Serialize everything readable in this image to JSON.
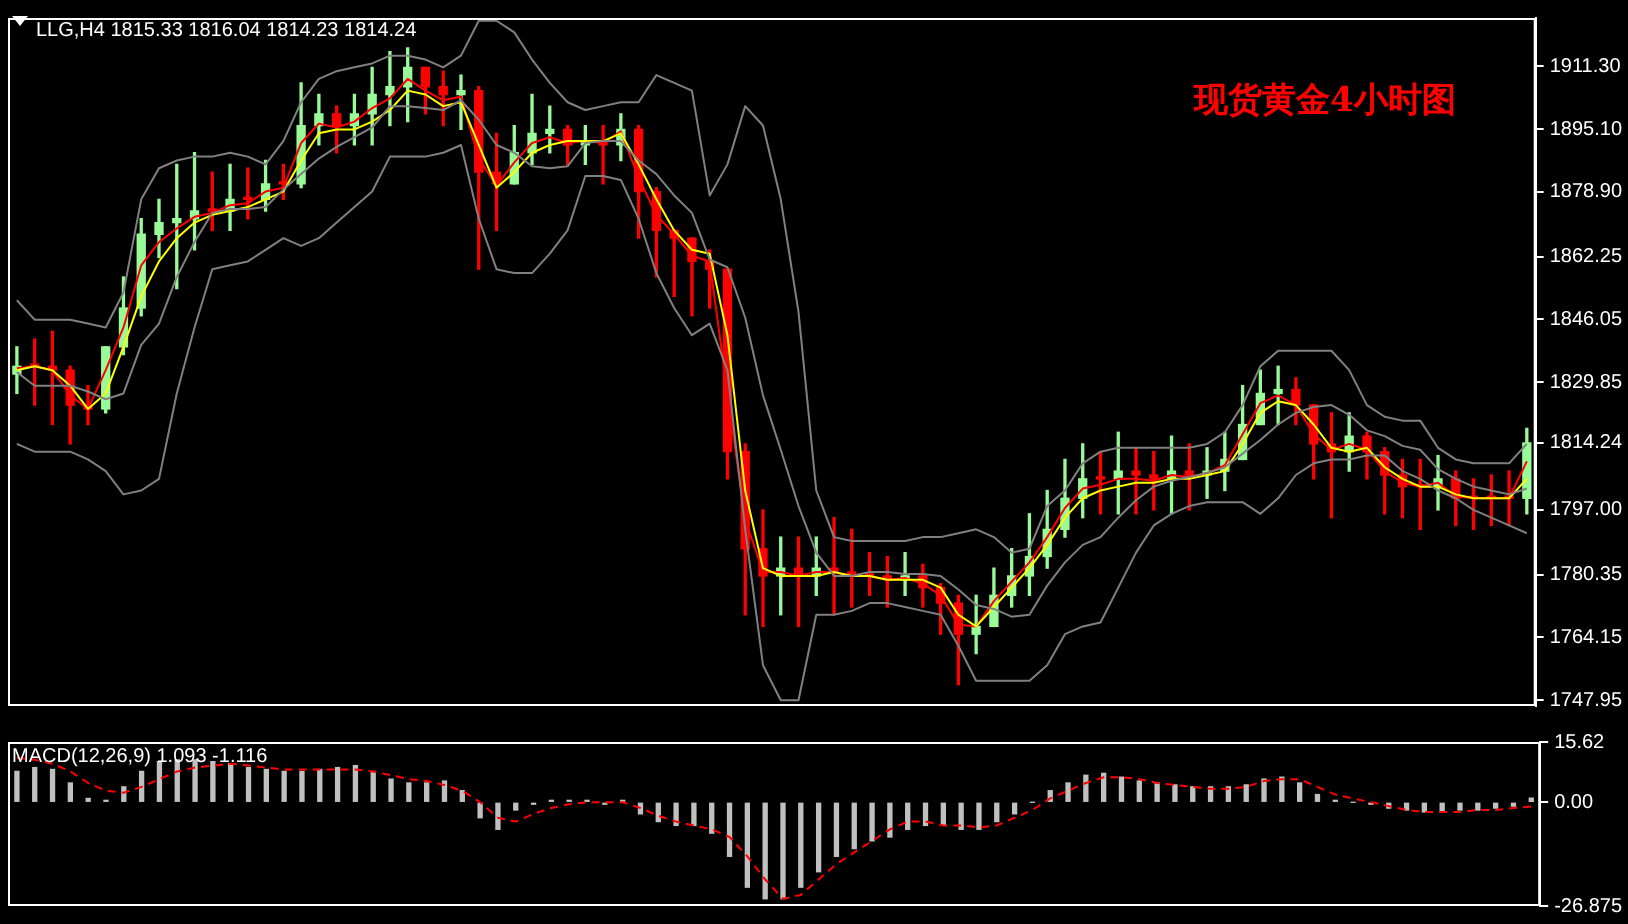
{
  "chart_data": [
    {
      "type": "candlestick",
      "title": "现货黄金4小时图",
      "subtitle": "LLG,H4 1815.33 1816.04 1814.23 1814.24",
      "categories": [
        null,
        null,
        null,
        null,
        null,
        null,
        null,
        null,
        null,
        null,
        null,
        null,
        null,
        null,
        null,
        null,
        null,
        null,
        null,
        null,
        null,
        null,
        null,
        null,
        null,
        null,
        null,
        null,
        null,
        null,
        null,
        null,
        null,
        null,
        null,
        null,
        null,
        null,
        null,
        null,
        null,
        null,
        null,
        null,
        null,
        null,
        null,
        null,
        null,
        null,
        null,
        null,
        null,
        null,
        null,
        null,
        null,
        null,
        null,
        null,
        null,
        null,
        null,
        null,
        null,
        null,
        null,
        null,
        null,
        null,
        null,
        null,
        null,
        null,
        null,
        null,
        null,
        null,
        null,
        null,
        null,
        null,
        null,
        null,
        null,
        null
      ],
      "ohlc": [
        [
          1832,
          1839,
          1827,
          1834
        ],
        [
          1834,
          1841,
          1824,
          1834
        ],
        [
          1834,
          1843,
          1819,
          1833
        ],
        [
          1833,
          1834,
          1814,
          1824
        ],
        [
          1824,
          1829,
          1819,
          1823
        ],
        [
          1823,
          1839,
          1822,
          1839
        ],
        [
          1839,
          1857,
          1837,
          1849
        ],
        [
          1849,
          1872,
          1847,
          1868
        ],
        [
          1868,
          1877,
          1862,
          1871
        ],
        [
          1871,
          1886,
          1854,
          1872
        ],
        [
          1872,
          1889,
          1864,
          1874
        ],
        [
          1874,
          1884,
          1869,
          1874
        ],
        [
          1874,
          1886,
          1869,
          1877
        ],
        [
          1877,
          1885,
          1872,
          1877
        ],
        [
          1877,
          1887,
          1874,
          1881
        ],
        [
          1881,
          1886,
          1877,
          1881
        ],
        [
          1881,
          1907,
          1880,
          1896
        ],
        [
          1896,
          1904,
          1891,
          1899
        ],
        [
          1899,
          1901,
          1889,
          1896
        ],
        [
          1896,
          1904,
          1891,
          1899
        ],
        [
          1899,
          1911,
          1891,
          1904
        ],
        [
          1904,
          1915,
          1896,
          1906
        ],
        [
          1906,
          1916,
          1897,
          1911
        ],
        [
          1911,
          1911,
          1899,
          1906
        ],
        [
          1906,
          1910,
          1896,
          1904
        ],
        [
          1904,
          1909,
          1895,
          1905
        ],
        [
          1905,
          1906,
          1859,
          1884
        ],
        [
          1884,
          1894,
          1869,
          1881
        ],
        [
          1881,
          1896,
          1881,
          1889
        ],
        [
          1889,
          1904,
          1886,
          1894
        ],
        [
          1894,
          1901,
          1889,
          1895
        ],
        [
          1895,
          1896,
          1886,
          1891
        ],
        [
          1891,
          1896,
          1886,
          1892
        ],
        [
          1892,
          1896,
          1881,
          1891
        ],
        [
          1891,
          1899,
          1887,
          1895
        ],
        [
          1895,
          1896,
          1867,
          1879
        ],
        [
          1879,
          1880,
          1857,
          1869
        ],
        [
          1869,
          1869,
          1852,
          1867
        ],
        [
          1867,
          1867,
          1847,
          1861
        ],
        [
          1861,
          1864,
          1849,
          1859
        ],
        [
          1859,
          1859,
          1805,
          1812
        ],
        [
          1812,
          1814,
          1770,
          1787
        ],
        [
          1787,
          1797,
          1767,
          1780
        ],
        [
          1780,
          1790,
          1770,
          1782
        ],
        [
          1782,
          1790,
          1767,
          1780
        ],
        [
          1780,
          1790,
          1775,
          1782
        ],
        [
          1782,
          1795,
          1770,
          1781
        ],
        [
          1781,
          1792,
          1772,
          1780
        ],
        [
          1780,
          1786,
          1775,
          1780
        ],
        [
          1780,
          1785,
          1772,
          1779
        ],
        [
          1779,
          1786,
          1775,
          1780
        ],
        [
          1780,
          1783,
          1772,
          1777
        ],
        [
          1777,
          1778,
          1765,
          1773
        ],
        [
          1773,
          1775,
          1752,
          1765
        ],
        [
          1765,
          1775,
          1760,
          1767
        ],
        [
          1767,
          1782,
          1767,
          1775
        ],
        [
          1775,
          1787,
          1772,
          1780
        ],
        [
          1780,
          1796,
          1775,
          1785
        ],
        [
          1785,
          1802,
          1782,
          1792
        ],
        [
          1792,
          1810,
          1790,
          1800
        ],
        [
          1800,
          1814,
          1795,
          1805
        ],
        [
          1805,
          1812,
          1796,
          1805
        ],
        [
          1805,
          1817,
          1796,
          1807
        ],
        [
          1807,
          1813,
          1796,
          1806
        ],
        [
          1806,
          1812,
          1797,
          1805
        ],
        [
          1805,
          1816,
          1796,
          1807
        ],
        [
          1807,
          1814,
          1797,
          1806
        ],
        [
          1806,
          1813,
          1800,
          1807
        ],
        [
          1807,
          1817,
          1802,
          1810
        ],
        [
          1810,
          1829,
          1810,
          1819
        ],
        [
          1819,
          1833,
          1819,
          1827
        ],
        [
          1827,
          1834,
          1819,
          1828
        ],
        [
          1828,
          1831,
          1819,
          1824
        ],
        [
          1824,
          1824,
          1805,
          1814
        ],
        [
          1814,
          1822,
          1795,
          1812
        ],
        [
          1812,
          1822,
          1807,
          1816
        ],
        [
          1816,
          1817,
          1805,
          1812
        ],
        [
          1812,
          1813,
          1796,
          1806
        ],
        [
          1806,
          1810,
          1795,
          1803
        ],
        [
          1803,
          1810,
          1792,
          1803
        ],
        [
          1803,
          1811,
          1797,
          1805
        ],
        [
          1805,
          1807,
          1793,
          1800
        ],
        [
          1800,
          1805,
          1792,
          1800
        ],
        [
          1800,
          1806,
          1793,
          1800
        ],
        [
          1800,
          1807,
          1793,
          1800
        ],
        [
          1800,
          1818,
          1796,
          1814.24
        ]
      ],
      "colors": [
        "#98fb98",
        "#ff0000",
        "#ff0000",
        "#ff0000",
        "#ff0000",
        "#98fb98",
        "#98fb98",
        "#98fb98",
        "#98fb98",
        "#98fb98",
        "#98fb98",
        "#ff0000",
        "#98fb98",
        "#ff0000",
        "#98fb98",
        "#ff0000",
        "#98fb98",
        "#98fb98",
        "#ff0000",
        "#98fb98",
        "#98fb98",
        "#98fb98",
        "#98fb98",
        "#ff0000",
        "#ff0000",
        "#98fb98",
        "#ff0000",
        "#ff0000",
        "#98fb98",
        "#98fb98",
        "#98fb98",
        "#ff0000",
        "#98fb98",
        "#ff0000",
        "#98fb98",
        "#ff0000",
        "#ff0000",
        "#ff0000",
        "#ff0000",
        "#ff0000",
        "#ff0000",
        "#ff0000",
        "#ff0000",
        "#98fb98",
        "#ff0000",
        "#98fb98",
        "#ff0000",
        "#ff0000",
        "#ff0000",
        "#ff0000",
        "#98fb98",
        "#ff0000",
        "#ff0000",
        "#ff0000",
        "#98fb98",
        "#98fb98",
        "#98fb98",
        "#98fb98",
        "#98fb98",
        "#98fb98",
        "#98fb98",
        "#ff0000",
        "#98fb98",
        "#ff0000",
        "#ff0000",
        "#98fb98",
        "#ff0000",
        "#98fb98",
        "#98fb98",
        "#98fb98",
        "#98fb98",
        "#98fb98",
        "#ff0000",
        "#ff0000",
        "#ff0000",
        "#98fb98",
        "#ff0000",
        "#ff0000",
        "#ff0000",
        "#ff0000",
        "#98fb98",
        "#ff0000",
        "#ff0000",
        "#ff0000",
        "#ff0000",
        "#98fb98"
      ],
      "series": [
        {
          "type": "line",
          "color": "#808080",
          "values": [
            1851,
            1846,
            1846,
            1846,
            1845,
            1844,
            1853,
            1877,
            1885,
            1887,
            1888,
            1888,
            1889,
            1888,
            1886,
            1892,
            1902,
            1908,
            1910,
            1911,
            1912,
            1914,
            1914,
            1913,
            1911,
            1914,
            1923,
            1923,
            1920,
            1913,
            1907,
            1902,
            1900,
            1901,
            1902,
            1902,
            1909,
            1907,
            1905,
            1878,
            1886,
            1901,
            1896,
            1877,
            1848,
            1802,
            1790,
            1789,
            1789,
            1789,
            1789,
            1790,
            1790,
            1791,
            1792,
            1790,
            1786,
            1787,
            1798,
            1802,
            1809,
            1812,
            1813,
            1813,
            1813,
            1813,
            1813,
            1814,
            1817,
            1824,
            1834,
            1838,
            1838,
            1838,
            1838,
            1833,
            1824,
            1821,
            1820,
            1820,
            1813,
            1810,
            1809,
            1809,
            1809,
            1814
          ]
        },
        {
          "type": "line",
          "color": "#808080",
          "values": [
            1832.5,
            1829,
            1829,
            1829,
            1827.5,
            1825.5,
            1827,
            1839.5,
            1845,
            1857,
            1866,
            1873.5,
            1874.5,
            1874.5,
            1875,
            1879.5,
            1883.5,
            1887.5,
            1890.5,
            1893,
            1895.5,
            1901,
            1901,
            1900.5,
            1900,
            1902.5,
            1897.5,
            1891,
            1889,
            1885.5,
            1885,
            1885.5,
            1891.5,
            1892,
            1892,
            1887,
            1883.5,
            1878,
            1873.5,
            1861.5,
            1859.5,
            1846.5,
            1826.5,
            1812.5,
            1798,
            1786,
            1780,
            1780,
            1781,
            1781,
            1780.5,
            1780.5,
            1780,
            1776.5,
            1772.5,
            1771.5,
            1769.5,
            1770,
            1777.5,
            1783.5,
            1788,
            1790,
            1795,
            1799.5,
            1803,
            1804.5,
            1805.5,
            1806.5,
            1808,
            1811.5,
            1815,
            1819,
            1822,
            1823.5,
            1824,
            1821.5,
            1817.5,
            1816,
            1813.5,
            1812.5,
            1807.5,
            1805,
            1803,
            1802,
            1801,
            1802.5
          ]
        },
        {
          "type": "line",
          "color": "#808080",
          "values": [
            1814,
            1812,
            1812,
            1812,
            1810,
            1807,
            1801,
            1802,
            1805,
            1827,
            1844,
            1859,
            1860,
            1861,
            1864,
            1867,
            1865,
            1867,
            1871,
            1875,
            1879,
            1888,
            1888,
            1888,
            1889,
            1891,
            1872,
            1859,
            1858,
            1858,
            1863,
            1869,
            1883,
            1883,
            1882,
            1872,
            1858,
            1849,
            1842,
            1845,
            1833,
            1792,
            1757,
            1748,
            1748,
            1770,
            1770,
            1771,
            1773,
            1773,
            1772,
            1771,
            1770,
            1762,
            1753,
            1753,
            1753,
            1753,
            1757,
            1765,
            1767,
            1768,
            1777,
            1786,
            1793,
            1796,
            1798,
            1799,
            1799,
            1799,
            1796,
            1800,
            1806,
            1809,
            1810,
            1810,
            1811,
            1811,
            1807,
            1805,
            1802,
            1800,
            1797,
            1795,
            1793,
            1791
          ]
        },
        {
          "type": "line",
          "color": "#ffff00",
          "values": [
            1833,
            1834,
            1833,
            1829,
            1823,
            1827,
            1839,
            1852,
            1861,
            1867,
            1871,
            1873,
            1874,
            1875,
            1877,
            1879,
            1887,
            1894,
            1895,
            1895,
            1897,
            1900,
            1905,
            1904,
            1901,
            1902,
            1891,
            1880,
            1884,
            1889,
            1891,
            1892,
            1892,
            1892,
            1894,
            1886,
            1877,
            1869,
            1864,
            1863,
            1842,
            1802,
            1782,
            1780,
            1780,
            1780,
            1781,
            1780,
            1780,
            1779,
            1779,
            1779,
            1777,
            1770,
            1767,
            1772,
            1777,
            1782,
            1788,
            1795,
            1800,
            1802,
            1803,
            1804,
            1804,
            1805,
            1805,
            1806,
            1807,
            1814,
            1822,
            1825,
            1824,
            1819,
            1813,
            1812,
            1813,
            1808,
            1805,
            1803,
            1803,
            1801,
            1800,
            1800,
            1800,
            1805
          ]
        },
        {
          "type": "line",
          "color": "#ff0000",
          "values": [
            1833.5,
            1834,
            1833,
            1826.5,
            1823,
            1833,
            1844,
            1860,
            1866,
            1869.5,
            1872.5,
            1873.5,
            1875.5,
            1876,
            1879,
            1880,
            1891.5,
            1896.5,
            1895.5,
            1897,
            1900.5,
            1903,
            1908,
            1905,
            1902.5,
            1903.5,
            1887.5,
            1880.5,
            1886.5,
            1891.5,
            1893,
            1891.5,
            1892,
            1891.5,
            1894.5,
            1882.5,
            1873,
            1868,
            1862.5,
            1861,
            1827,
            1794.5,
            1781,
            1781,
            1780,
            1781,
            1781,
            1780,
            1780,
            1779,
            1779.5,
            1778,
            1775,
            1767.5,
            1767,
            1773.5,
            1778.5,
            1783.5,
            1790,
            1797.5,
            1802.5,
            1803.5,
            1805,
            1805,
            1804.5,
            1806,
            1805.5,
            1806.5,
            1808.5,
            1816.5,
            1824.5,
            1826.5,
            1824,
            1816.5,
            1812.5,
            1814,
            1812.5,
            1807,
            1804,
            1803,
            1804,
            1800.5,
            1800,
            1800,
            1800,
            1809.5
          ]
        }
      ],
      "ylim": [
        1746.5,
        1923.7
      ],
      "yticks": [
        {
          "value": 1747.95,
          "label": "1747.95"
        },
        {
          "value": 1764.15,
          "label": "1764.15"
        },
        {
          "value": 1780.35,
          "label": "1780.35"
        },
        {
          "value": 1797,
          "label": "1797.00"
        },
        {
          "value": 1814.24,
          "label": "1814.24"
        },
        {
          "value": 1829.85,
          "label": "1829.85"
        },
        {
          "value": 1846.05,
          "label": "1846.05"
        },
        {
          "value": 1862.25,
          "label": "1862.25"
        },
        {
          "value": 1878.9,
          "label": "1878.90"
        },
        {
          "value": 1895.1,
          "label": "1895.10"
        },
        {
          "value": 1911.3,
          "label": "1911.30"
        }
      ],
      "legend": false,
      "grid": false,
      "tick_labels": "y",
      "marker": "none"
    },
    {
      "type": "bar",
      "title": "MACD(12,26,9) 1.093 -1.116",
      "categories": [
        null,
        null,
        null,
        null,
        null,
        null,
        null,
        null,
        null,
        null,
        null,
        null,
        null,
        null,
        null,
        null,
        null,
        null,
        null,
        null,
        null,
        null,
        null,
        null,
        null,
        null,
        null,
        null,
        null,
        null,
        null,
        null,
        null,
        null,
        null,
        null,
        null,
        null,
        null,
        null,
        null,
        null,
        null,
        null,
        null,
        null,
        null,
        null,
        null,
        null,
        null,
        null,
        null,
        null,
        null,
        null,
        null,
        null,
        null,
        null,
        null,
        null,
        null,
        null,
        null,
        null,
        null,
        null,
        null,
        null,
        null,
        null,
        null,
        null,
        null,
        null,
        null,
        null,
        null,
        null,
        null,
        null,
        null,
        null,
        null,
        null
      ],
      "series": [
        {
          "type": "bar",
          "color": "#c0c0c0",
          "values": [
            8,
            9,
            8.5,
            5,
            1,
            0.5,
            4,
            8,
            10.5,
            11,
            11,
            10.5,
            10,
            9,
            8.5,
            8,
            8,
            8.5,
            9,
            9.5,
            8,
            6,
            5,
            5,
            5.5,
            3,
            -4,
            -7,
            -2,
            -0.5,
            0.5,
            0.5,
            0.5,
            -0.5,
            0.5,
            -3,
            -5,
            -6,
            -6,
            -8,
            -14,
            -22,
            -25,
            -25,
            -22,
            -18,
            -14,
            -12,
            -10,
            -9,
            -7,
            -6,
            -6,
            -7,
            -7,
            -5,
            -3,
            0,
            3,
            5,
            7,
            7.5,
            6.5,
            5.5,
            5,
            4.5,
            4,
            4,
            4,
            4.5,
            6,
            6.5,
            5,
            2,
            0.5,
            0,
            -0.5,
            -1.5,
            -2,
            -2.5,
            -2.5,
            -2,
            -2,
            -1.5,
            -1,
            1.093
          ]
        },
        {
          "type": "line",
          "color": "#ff0000",
          "line_style": "dashed",
          "values": [
            11.5,
            11,
            10,
            8,
            5,
            3,
            2.5,
            4,
            6,
            8,
            9,
            9.5,
            10,
            9.5,
            9,
            8.5,
            8.5,
            8.5,
            8.5,
            8.5,
            8,
            7,
            6,
            5.5,
            4.5,
            3,
            0,
            -4,
            -5,
            -3,
            -1.5,
            -0.5,
            0,
            0,
            0,
            -1.5,
            -3.5,
            -5,
            -6,
            -7,
            -9,
            -14,
            -20,
            -25,
            -24,
            -20,
            -16,
            -13,
            -10,
            -7,
            -5,
            -5,
            -6,
            -6,
            -6.5,
            -6,
            -4,
            -2,
            1,
            3,
            5,
            6.5,
            6.5,
            6,
            5,
            4.5,
            4,
            3.5,
            3.5,
            4,
            5.5,
            6,
            6,
            4,
            2,
            1,
            0,
            -1,
            -2,
            -2.5,
            -2.5,
            -2.5,
            -2,
            -2,
            -1.5,
            -1.116
          ]
        }
      ],
      "ylim": [
        -26.875,
        15.62
      ],
      "yticks": [
        -26.875,
        {
          "value": 0,
          "label": "0.00"
        },
        15.62
      ],
      "legend": false,
      "grid": false,
      "tick_labels": "y",
      "marker": "none"
    }
  ]
}
